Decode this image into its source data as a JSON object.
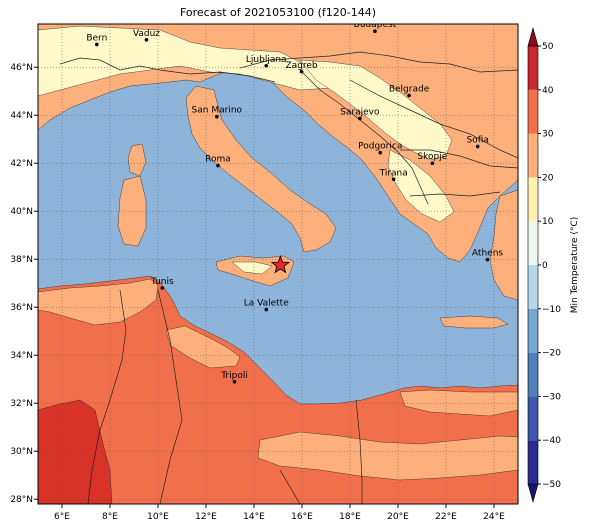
{
  "title": "Forecast of 2021053100 (f120-144)",
  "map": {
    "lon_range": [
      5,
      25
    ],
    "lat_range": [
      27.8,
      47.8
    ],
    "x_ticks": [
      {
        "lon": 6,
        "label": "6°E"
      },
      {
        "lon": 8,
        "label": "8°E"
      },
      {
        "lon": 10,
        "label": "10°E"
      },
      {
        "lon": 12,
        "label": "12°E"
      },
      {
        "lon": 14,
        "label": "14°E"
      },
      {
        "lon": 16,
        "label": "16°E"
      },
      {
        "lon": 18,
        "label": "18°E"
      },
      {
        "lon": 20,
        "label": "20°E"
      },
      {
        "lon": 22,
        "label": "22°E"
      },
      {
        "lon": 24,
        "label": "24°E"
      }
    ],
    "y_ticks": [
      {
        "lat": 28,
        "label": "28°N"
      },
      {
        "lat": 30,
        "label": "30°N"
      },
      {
        "lat": 32,
        "label": "32°N"
      },
      {
        "lat": 34,
        "label": "34°N"
      },
      {
        "lat": 36,
        "label": "36°N"
      },
      {
        "lat": 38,
        "label": "38°N"
      },
      {
        "lat": 40,
        "label": "40°N"
      },
      {
        "lat": 42,
        "label": "42°N"
      },
      {
        "lat": 44,
        "label": "44°N"
      },
      {
        "lat": 46,
        "label": "46°N"
      }
    ],
    "grid": true,
    "cities": [
      {
        "name": "Bern",
        "lon": 7.45,
        "lat": 46.95
      },
      {
        "name": "Vaduz",
        "lon": 9.52,
        "lat": 47.14
      },
      {
        "name": "Budapest",
        "lon": 19.04,
        "lat": 47.5
      },
      {
        "name": "Ljubljana",
        "lon": 14.51,
        "lat": 46.06
      },
      {
        "name": "Zagreb",
        "lon": 15.98,
        "lat": 45.81
      },
      {
        "name": "Belgrade",
        "lon": 20.46,
        "lat": 44.82
      },
      {
        "name": "San Marino",
        "lon": 12.45,
        "lat": 43.94
      },
      {
        "name": "Sarajevo",
        "lon": 18.41,
        "lat": 43.86
      },
      {
        "name": "Sofia",
        "lon": 23.32,
        "lat": 42.7
      },
      {
        "name": "Roma",
        "lon": 12.5,
        "lat": 41.9
      },
      {
        "name": "Podgorica",
        "lon": 19.26,
        "lat": 42.44
      },
      {
        "name": "Skopje",
        "lon": 21.43,
        "lat": 42.0
      },
      {
        "name": "Tirana",
        "lon": 19.82,
        "lat": 41.33
      },
      {
        "name": "Athens",
        "lon": 23.73,
        "lat": 37.98
      },
      {
        "name": "Tunis",
        "lon": 10.18,
        "lat": 36.8
      },
      {
        "name": "La Valette",
        "lon": 14.51,
        "lat": 35.9
      },
      {
        "name": "Tripoli",
        "lon": 13.19,
        "lat": 32.89
      }
    ],
    "marker": {
      "lon": 15.1,
      "lat": 37.75,
      "color": "#e8262b"
    },
    "colors": {
      "sea": "#8fb4d9",
      "land_0_10": "#fff8c9",
      "land_10_20": "#fdb07c",
      "land_20_30": "#f26f4b",
      "land_30_40": "#d93328",
      "border": "#222222",
      "grid": "#555555"
    }
  },
  "colorbar": {
    "label": "Min Temperature (°C)",
    "ticks": [
      -50,
      -40,
      -30,
      -20,
      -10,
      0,
      10,
      20,
      30,
      40,
      50
    ],
    "levels": [
      {
        "from": -50,
        "to": -40,
        "color": "#2a2c8f"
      },
      {
        "from": -40,
        "to": -30,
        "color": "#3e57a8"
      },
      {
        "from": -30,
        "to": -20,
        "color": "#4e7fba"
      },
      {
        "from": -20,
        "to": -10,
        "color": "#73a6d1"
      },
      {
        "from": -10,
        "to": 0,
        "color": "#b5d8ea"
      },
      {
        "from": 0,
        "to": 10,
        "color": "#eef8ee"
      },
      {
        "from": 10,
        "to": 20,
        "color": "#fff1b0"
      },
      {
        "from": 20,
        "to": 30,
        "color": "#fdb07c"
      },
      {
        "from": 30,
        "to": 40,
        "color": "#f26f4b"
      },
      {
        "from": 40,
        "to": 50,
        "color": "#c6282c"
      }
    ],
    "extend_low_color": "#1d1470",
    "extend_high_color": "#8c0b1f"
  }
}
